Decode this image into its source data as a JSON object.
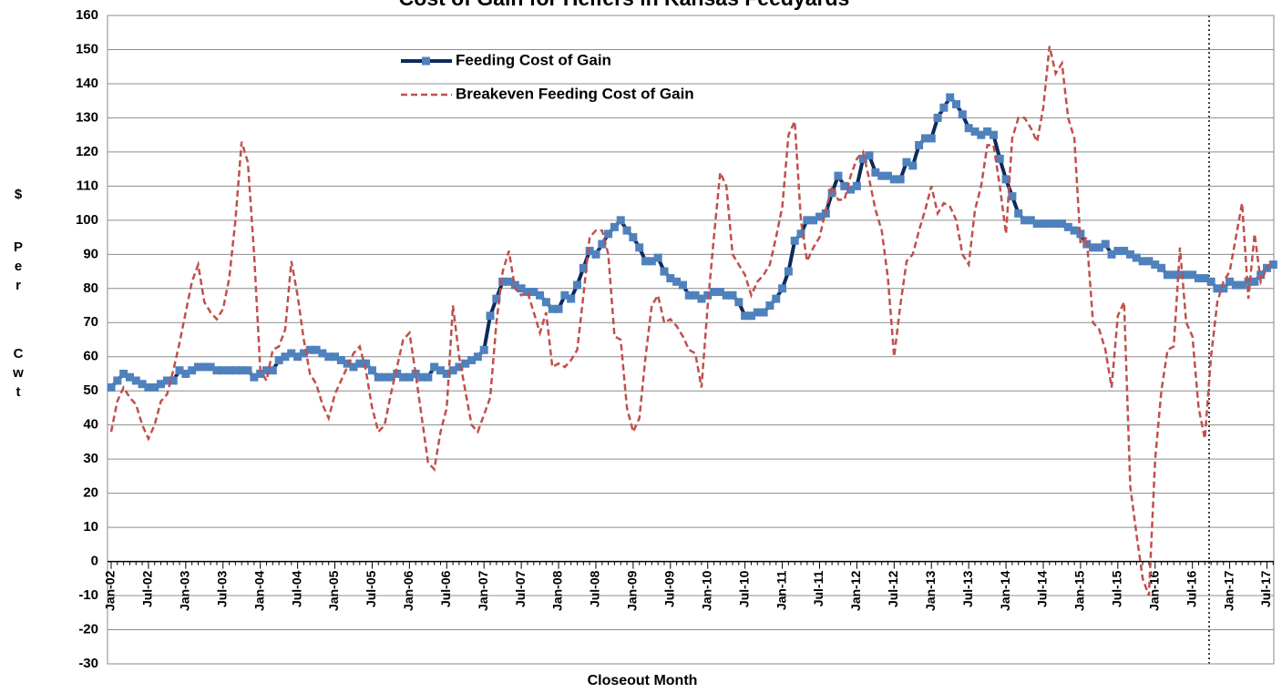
{
  "chart_data": {
    "type": "line",
    "title": "Cost of Gain for Heifers in Kansas Feedyards",
    "xlabel": "Closeout Month",
    "ylabel": [
      "$",
      "Per",
      "Cwt"
    ],
    "categories": [
      "Jan-02",
      null,
      null,
      null,
      null,
      null,
      "Jul-02",
      null,
      null,
      null,
      null,
      null,
      "Jan-03",
      null,
      null,
      null,
      null,
      null,
      "Jul-03",
      null,
      null,
      null,
      null,
      null,
      "Jan-04",
      null,
      null,
      null,
      null,
      null,
      "Jul-04",
      null,
      null,
      null,
      null,
      null,
      "Jan-05",
      null,
      null,
      null,
      null,
      null,
      "Jul-05",
      null,
      null,
      null,
      null,
      null,
      "Jan-06",
      null,
      null,
      null,
      null,
      null,
      "Jul-06",
      null,
      null,
      null,
      null,
      null,
      "Jan-07",
      null,
      null,
      null,
      null,
      null,
      "Jul-07",
      null,
      null,
      null,
      null,
      null,
      "Jan-08",
      null,
      null,
      null,
      null,
      null,
      "Jul-08",
      null,
      null,
      null,
      null,
      null,
      "Jan-09",
      null,
      null,
      null,
      null,
      null,
      "Jul-09",
      null,
      null,
      null,
      null,
      null,
      "Jan-10",
      null,
      null,
      null,
      null,
      null,
      "Jul-10",
      null,
      null,
      null,
      null,
      null,
      "Jan-11",
      null,
      null,
      null,
      null,
      null,
      "Jul-11",
      null,
      null,
      null,
      null,
      null,
      "Jan-12",
      null,
      null,
      null,
      null,
      null,
      "Jul-12",
      null,
      null,
      null,
      null,
      null,
      "Jan-13",
      null,
      null,
      null,
      null,
      null,
      "Jul-13",
      null,
      null,
      null,
      null,
      null,
      "Jan-14",
      null,
      null,
      null,
      null,
      null,
      "Jul-14",
      null,
      null,
      null,
      null,
      null,
      "Jan-15",
      null,
      null,
      null,
      null,
      null,
      "Jul-15",
      null,
      null,
      null,
      null,
      null,
      "Jan-16",
      null,
      null,
      null,
      null,
      null,
      "Jul-16",
      null,
      null,
      null,
      null,
      null,
      "Jan-17",
      null,
      null,
      null,
      null,
      null,
      "Jul-17",
      null
    ],
    "series": [
      {
        "name": "Feeding Cost of Gain",
        "color": "#0d2a5c",
        "marker_color": "#4f81bd",
        "values": [
          51,
          53,
          55,
          54,
          53,
          52,
          51,
          51,
          52,
          53,
          53,
          56,
          55,
          56,
          57,
          57,
          57,
          56,
          56,
          56,
          56,
          56,
          56,
          54,
          55,
          56,
          56,
          59,
          60,
          61,
          60,
          61,
          62,
          62,
          61,
          60,
          60,
          59,
          58,
          57,
          58,
          58,
          56,
          54,
          54,
          54,
          55,
          54,
          54,
          55,
          54,
          54,
          57,
          56,
          55,
          56,
          57,
          58,
          59,
          60,
          62,
          72,
          77,
          82,
          82,
          81,
          80,
          79,
          79,
          78,
          76,
          74,
          74,
          78,
          77,
          81,
          86,
          91,
          90,
          93,
          96,
          98,
          100,
          97,
          95,
          92,
          88,
          88,
          89,
          85,
          83,
          82,
          81,
          78,
          78,
          77,
          78,
          79,
          79,
          78,
          78,
          76,
          72,
          72,
          73,
          73,
          75,
          77,
          80,
          85,
          94,
          96,
          100,
          100,
          101,
          102,
          108,
          113,
          110,
          109,
          110,
          118,
          119,
          114,
          113,
          113,
          112,
          112,
          117,
          116,
          122,
          124,
          124,
          130,
          133,
          136,
          134,
          131,
          127,
          126,
          125,
          126,
          125,
          118,
          112,
          107,
          102,
          100,
          100,
          99,
          99,
          99,
          99,
          99,
          98,
          97,
          96,
          93,
          92,
          92,
          93,
          90,
          91,
          91,
          90,
          89,
          88,
          88,
          87,
          86,
          84,
          84,
          84,
          84,
          84,
          83,
          83,
          82,
          80,
          80,
          82,
          81,
          81,
          82,
          82,
          84,
          86,
          87
        ]
      },
      {
        "name": "Breakeven Feeding Cost of Gain",
        "color": "#c0504d",
        "dashed": true,
        "values": [
          38,
          47,
          51,
          48,
          46,
          40,
          36,
          40,
          47,
          49,
          56,
          64,
          73,
          82,
          87,
          76,
          73,
          71,
          74,
          83,
          100,
          123,
          117,
          90,
          56,
          53,
          62,
          63,
          68,
          88,
          78,
          65,
          55,
          52,
          46,
          42,
          49,
          53,
          57,
          61,
          63,
          56,
          45,
          38,
          40,
          49,
          57,
          65,
          67,
          55,
          42,
          29,
          27,
          38,
          45,
          75,
          60,
          50,
          40,
          38,
          43,
          48,
          70,
          85,
          91,
          80,
          78,
          79,
          73,
          67,
          73,
          57,
          58,
          57,
          59,
          62,
          78,
          95,
          97,
          97,
          90,
          66,
          65,
          45,
          38,
          42,
          60,
          75,
          78,
          70,
          71,
          69,
          66,
          62,
          61,
          51,
          75,
          95,
          114,
          110,
          90,
          87,
          84,
          78,
          82,
          84,
          87,
          95,
          104,
          125,
          129,
          100,
          88,
          92,
          95,
          103,
          110,
          106,
          106,
          113,
          118,
          120,
          112,
          103,
          97,
          83,
          60,
          75,
          88,
          90,
          97,
          103,
          110,
          102,
          105,
          104,
          100,
          90,
          87,
          103,
          110,
          122,
          122,
          110,
          96,
          124,
          130,
          130,
          127,
          123,
          133,
          151,
          143,
          146,
          130,
          124,
          93,
          95,
          70,
          68,
          62,
          51,
          72,
          76,
          22,
          8,
          -5,
          -10,
          30,
          50,
          62,
          63,
          92,
          70,
          66,
          45,
          36,
          60,
          76,
          82,
          85,
          95,
          105,
          77,
          96,
          82,
          86,
          88
        ]
      }
    ],
    "ylim": [
      -30,
      160
    ],
    "yticks": [
      -30,
      -20,
      -10,
      0,
      10,
      20,
      30,
      40,
      50,
      60,
      70,
      80,
      90,
      100,
      110,
      120,
      130,
      140,
      150,
      160
    ],
    "grid": true
  }
}
